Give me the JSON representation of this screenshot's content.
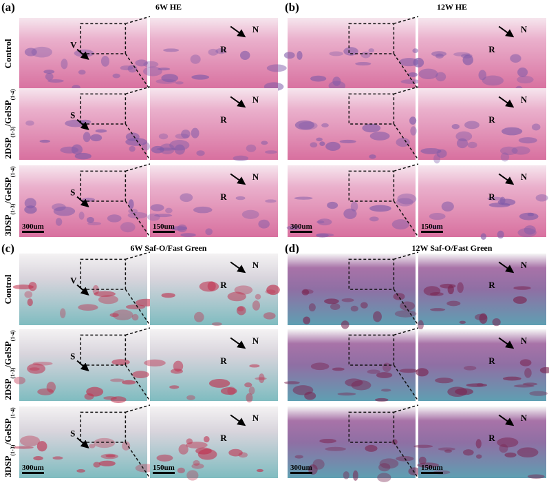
{
  "panels": [
    {
      "label": "(a)",
      "title": "6W HE",
      "style": "he",
      "row_labels": [
        {
          "parts": [
            "Control"
          ]
        },
        {
          "parts": [
            "2DSP",
            "(1-3)",
            "/GelSP",
            "(1-4)"
          ]
        },
        {
          "parts": [
            "3DSP",
            "(1-3)",
            "/GelSP",
            "(1-4)"
          ]
        }
      ],
      "rows": [
        {
          "left": [
            "V"
          ],
          "right": [
            "R",
            "N"
          ]
        },
        {
          "left": [
            "S"
          ],
          "right": [
            "R",
            "N"
          ]
        },
        {
          "left": [
            "S"
          ],
          "right": [
            "R",
            "N"
          ]
        }
      ],
      "scale_bars": [
        "300um",
        "150um"
      ]
    },
    {
      "label": "(b)",
      "title": "12W HE",
      "style": "he",
      "rows": [
        {
          "left": [],
          "right": [
            "R",
            "N"
          ]
        },
        {
          "left": [],
          "right": [
            "R",
            "N"
          ]
        },
        {
          "left": [],
          "right": [
            "R",
            "N"
          ]
        }
      ],
      "scale_bars": [
        "300um",
        "150um"
      ]
    },
    {
      "label": "(c)",
      "title": "6W Saf-O/Fast Green",
      "style": "safo",
      "row_labels": [
        {
          "parts": [
            "Control"
          ]
        },
        {
          "parts": [
            "2DSP",
            "(1-3)",
            "/GelSP",
            "(1-4)"
          ]
        },
        {
          "parts": [
            "3DSP",
            "(1-3)",
            "/GelSP",
            "(1-4)"
          ]
        }
      ],
      "rows": [
        {
          "left": [
            "V"
          ],
          "right": [
            "R",
            "N"
          ]
        },
        {
          "left": [
            "S"
          ],
          "right": [
            "R",
            "N"
          ]
        },
        {
          "left": [
            "S"
          ],
          "right": [
            "R",
            "N"
          ]
        }
      ],
      "scale_bars": [
        "300um",
        "150um"
      ]
    },
    {
      "label": "(d)",
      "title": "12W  Saf-O/Fast Green",
      "style": "safo2",
      "rows": [
        {
          "left": [],
          "right": [
            "R",
            "N"
          ]
        },
        {
          "left": [],
          "right": [
            "R",
            "N"
          ]
        },
        {
          "left": [],
          "right": [
            "R",
            "N"
          ]
        }
      ],
      "scale_bars": [
        "300um",
        "150um"
      ]
    }
  ]
}
